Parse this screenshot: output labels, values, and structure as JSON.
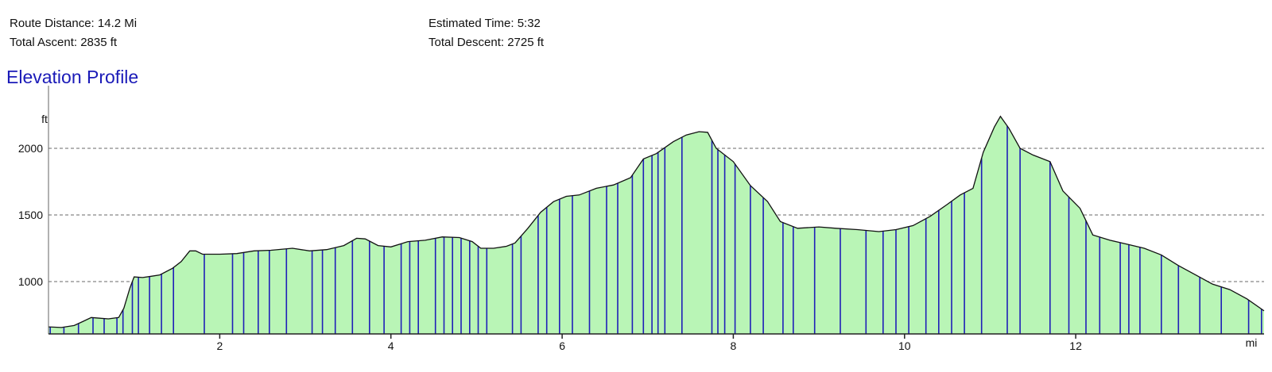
{
  "stats": {
    "route_distance": "Route Distance: 14.2 Mi",
    "total_ascent": "Total Ascent: 2835 ft",
    "estimated_time": "Estimated Time: 5:32",
    "total_descent": "Total Descent: 2725 ft"
  },
  "colors": {
    "title": "#1a1ab8",
    "fill": "#b9f5b6",
    "outline": "#111111",
    "markers": "#1f1fb8",
    "grid": "#888888"
  },
  "chart_data": {
    "type": "area",
    "title": "Elevation Profile",
    "ylabel": "ft",
    "xlabel": "mi",
    "xlim": [
      0,
      14.2
    ],
    "ylim": [
      607,
      2000
    ],
    "x_ticks": [
      2,
      4,
      6,
      8,
      10,
      12
    ],
    "y_ticks": [
      1000,
      1500,
      2000
    ],
    "grid": "dashed horizontal at y ticks",
    "x": [
      0.0,
      0.15,
      0.3,
      0.4,
      0.5,
      0.6,
      0.7,
      0.82,
      0.88,
      0.95,
      1.0,
      1.1,
      1.2,
      1.3,
      1.45,
      1.55,
      1.65,
      1.72,
      1.8,
      1.9,
      2.0,
      2.2,
      2.4,
      2.6,
      2.85,
      3.05,
      3.25,
      3.45,
      3.6,
      3.7,
      3.85,
      4.0,
      4.2,
      4.4,
      4.6,
      4.8,
      4.95,
      5.05,
      5.2,
      5.35,
      5.45,
      5.6,
      5.75,
      5.9,
      6.05,
      6.2,
      6.4,
      6.6,
      6.8,
      6.95,
      7.1,
      7.3,
      7.45,
      7.6,
      7.7,
      7.8,
      8.0,
      8.2,
      8.4,
      8.55,
      8.75,
      9.0,
      9.2,
      9.45,
      9.7,
      9.9,
      10.1,
      10.3,
      10.5,
      10.65,
      10.8,
      10.92,
      11.05,
      11.12,
      11.22,
      11.35,
      11.5,
      11.7,
      11.85,
      12.05,
      12.2,
      12.4,
      12.6,
      12.8,
      13.0,
      13.2,
      13.4,
      13.6,
      13.8,
      14.0,
      14.2
    ],
    "elevation_ft": [
      660,
      655,
      670,
      700,
      730,
      725,
      720,
      730,
      800,
      950,
      1035,
      1030,
      1040,
      1050,
      1100,
      1150,
      1230,
      1230,
      1205,
      1205,
      1205,
      1210,
      1230,
      1235,
      1250,
      1230,
      1240,
      1270,
      1325,
      1320,
      1270,
      1260,
      1300,
      1310,
      1335,
      1330,
      1300,
      1250,
      1250,
      1265,
      1290,
      1400,
      1520,
      1600,
      1640,
      1650,
      1700,
      1725,
      1780,
      1920,
      1960,
      2050,
      2100,
      2125,
      2120,
      2000,
      1900,
      1720,
      1600,
      1450,
      1400,
      1410,
      1400,
      1390,
      1375,
      1390,
      1420,
      1490,
      1580,
      1650,
      1700,
      1970,
      2160,
      2240,
      2150,
      2000,
      1950,
      1900,
      1680,
      1550,
      1350,
      1310,
      1280,
      1250,
      1200,
      1120,
      1050,
      980,
      940,
      870,
      780
    ],
    "marker_x": [
      0.02,
      0.18,
      0.35,
      0.52,
      0.65,
      0.8,
      0.87,
      0.98,
      1.05,
      1.18,
      1.32,
      1.46,
      1.82,
      2.15,
      2.28,
      2.45,
      2.58,
      2.78,
      3.08,
      3.2,
      3.35,
      3.55,
      3.75,
      3.92,
      4.12,
      4.22,
      4.32,
      4.52,
      4.62,
      4.72,
      4.82,
      4.92,
      5.02,
      5.12,
      5.42,
      5.52,
      5.72,
      5.82,
      5.97,
      6.12,
      6.32,
      6.52,
      6.65,
      6.82,
      6.95,
      7.05,
      7.12,
      7.2,
      7.4,
      7.75,
      7.82,
      7.9,
      8.02,
      8.2,
      8.35,
      8.58,
      8.7,
      8.95,
      9.25,
      9.55,
      9.75,
      9.9,
      10.05,
      10.25,
      10.4,
      10.55,
      10.7,
      10.9,
      11.2,
      11.35,
      11.7,
      11.92,
      12.12,
      12.28,
      12.52,
      12.62,
      12.75,
      13.0,
      13.2,
      13.45,
      13.7,
      14.02,
      14.17
    ]
  }
}
